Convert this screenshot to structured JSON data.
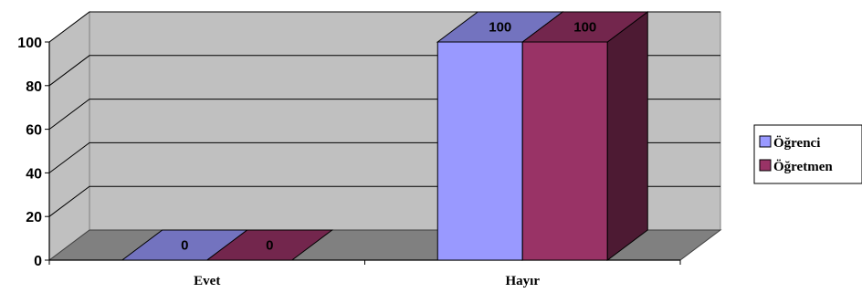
{
  "chart_data": {
    "type": "bar",
    "categories": [
      "Evet",
      "Hayır"
    ],
    "series": [
      {
        "name": "Öğrenci",
        "values": [
          0,
          100
        ]
      },
      {
        "name": "Öğretmen",
        "values": [
          0,
          100
        ]
      }
    ],
    "ylim": [
      0,
      100
    ],
    "yticks": [
      0,
      20,
      40,
      60,
      80,
      100
    ],
    "grid": true,
    "legend": "right",
    "title": "",
    "xlabel": "",
    "ylabel": ""
  },
  "colors": {
    "series": [
      "#9999ff",
      "#993366"
    ],
    "plot_back": "#c0c0c0",
    "floor": "#808080"
  }
}
